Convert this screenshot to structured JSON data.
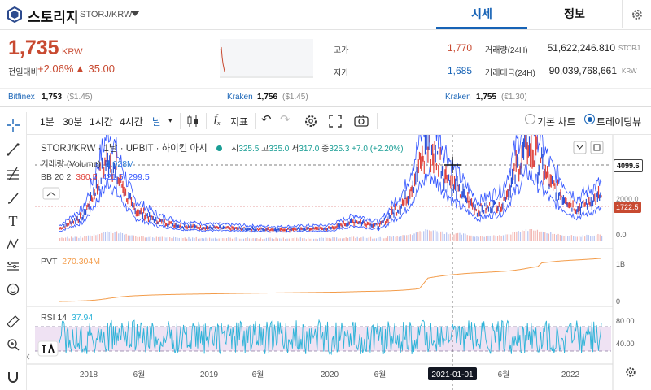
{
  "header": {
    "coin_name": "스토리지",
    "coin_pair": "STORJ/KRW",
    "tabs": [
      {
        "label": "시세",
        "active": true
      },
      {
        "label": "정보",
        "active": false
      }
    ]
  },
  "summary": {
    "price": "1,735",
    "currency": "KRW",
    "change_label": "전일대비",
    "change_pct": "+2.06%",
    "change_abs": "▲ 35.00",
    "high_label": "고가",
    "high_value": "1,770",
    "low_label": "저가",
    "low_value": "1,685",
    "volume_label": "거래량(24H)",
    "volume_value": "51,622,246.810",
    "volume_unit": "STORJ",
    "amount_label": "거래대금(24H)",
    "amount_value": "90,039,768,661",
    "amount_unit": "KRW"
  },
  "exchanges": [
    {
      "name": "Bitfinex",
      "price": "1,753",
      "sub": "($1.45)"
    },
    {
      "name": "Kraken",
      "price": "1,756",
      "sub": "($1.45)"
    },
    {
      "name": "Kraken",
      "price": "1,755",
      "sub": "(€1.30)"
    }
  ],
  "toolbar": {
    "intervals": [
      "1분",
      "30분",
      "1시간",
      "4시간",
      "날"
    ],
    "indicator_label": "지표",
    "chart_modes": [
      {
        "label": "기본 차트",
        "selected": false
      },
      {
        "label": "트레이딩뷰",
        "selected": true
      }
    ]
  },
  "chart": {
    "symbol_line": "STORJ/KRW · 1날 · UPBIT · 하이킨 아시",
    "ohlc": {
      "o_label": "시",
      "o": "325.5",
      "h_label": "고",
      "h": "335.0",
      "l_label": "저",
      "l": "317.0",
      "c_label": "종",
      "c": "325.3",
      "chg": "+7.0 (+2.20%)"
    },
    "volume_label": "거래량 (Volume)",
    "volume_value": "4.028M",
    "bb_label": "BB 20 2",
    "bb_values": [
      "360.5",
      "421.5",
      "299.5"
    ],
    "pvt_label": "PVT",
    "pvt_value": "270.304M",
    "rsi_label": "RSI 14",
    "rsi_value": "37.94",
    "price_axis": [
      "4099.6",
      "2000.0",
      "1722.5",
      "0.0"
    ],
    "pvt_axis": [
      "1B",
      "0"
    ],
    "rsi_axis": [
      "80.00",
      "40.00"
    ],
    "time_axis": [
      "2018",
      "6월",
      "2019",
      "6월",
      "2020",
      "6월",
      "2021-01-01",
      "6월",
      "2022"
    ],
    "colors": {
      "up": "#e0413a",
      "down": "#2b50d8",
      "bb": "#3355ff",
      "pvt": "#f39c4a",
      "rsi": "#2db3d8",
      "accent": "#1763b6",
      "price": "#c84a31"
    }
  },
  "chart_data": {
    "type": "line",
    "title": "STORJ/KRW",
    "x": [
      "2017-10",
      "2017-12",
      "2018-01",
      "2018-03",
      "2018-06",
      "2018-10",
      "2019-01",
      "2019-06",
      "2019-10",
      "2020-01",
      "2020-06",
      "2020-10",
      "2020-12",
      "2021-01",
      "2021-02",
      "2021-03",
      "2021-04",
      "2021-06",
      "2021-09",
      "2021-11",
      "2021-12",
      "2022-02",
      "2022-04"
    ],
    "series": [
      {
        "values": [
          300,
          900,
          3500,
          1200,
          650,
          420,
          360,
          330,
          290,
          270,
          300,
          320,
          650,
          420,
          1500,
          4000,
          2200,
          1100,
          1500,
          4100,
          2200,
          1200,
          1735
        ]
      }
    ],
    "ylim": [
      0,
      4200
    ]
  }
}
